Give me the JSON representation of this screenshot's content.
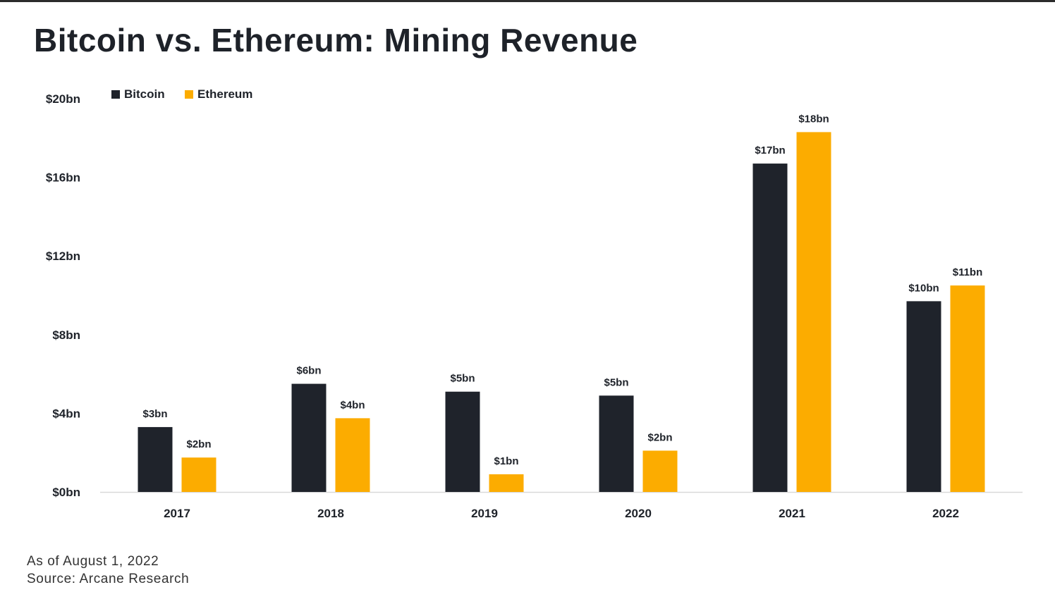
{
  "title": "Bitcoin vs. Ethereum: Mining Revenue",
  "footnotes": {
    "date": "As of August 1, 2022",
    "source": "Source: Arcane Research"
  },
  "colors": {
    "bitcoin": "#1f232b",
    "ethereum": "#fcac00",
    "text": "#1e2229",
    "axis": "#d9d9d9"
  },
  "chart_data": {
    "type": "bar",
    "title": "Bitcoin vs. Ethereum: Mining Revenue",
    "xlabel": "",
    "ylabel": "",
    "ylim": [
      0,
      20
    ],
    "yticks": [
      0,
      4,
      8,
      12,
      16,
      20
    ],
    "ytick_labels": [
      "$0bn",
      "$4bn",
      "$8bn",
      "$12bn",
      "$16bn",
      "$20bn"
    ],
    "categories": [
      "2017",
      "2018",
      "2019",
      "2020",
      "2021",
      "2022"
    ],
    "legend_position": "top-left",
    "grid": false,
    "series": [
      {
        "name": "Bitcoin",
        "values": [
          3.3,
          5.5,
          5.1,
          4.9,
          16.7,
          9.7
        ],
        "labels": [
          "$3bn",
          "$6bn",
          "$5bn",
          "$5bn",
          "$17bn",
          "$10bn"
        ]
      },
      {
        "name": "Ethereum",
        "values": [
          1.75,
          3.75,
          0.9,
          2.1,
          18.3,
          10.5
        ],
        "labels": [
          "$2bn",
          "$4bn",
          "$1bn",
          "$2bn",
          "$18bn",
          "$11bn"
        ]
      }
    ]
  }
}
